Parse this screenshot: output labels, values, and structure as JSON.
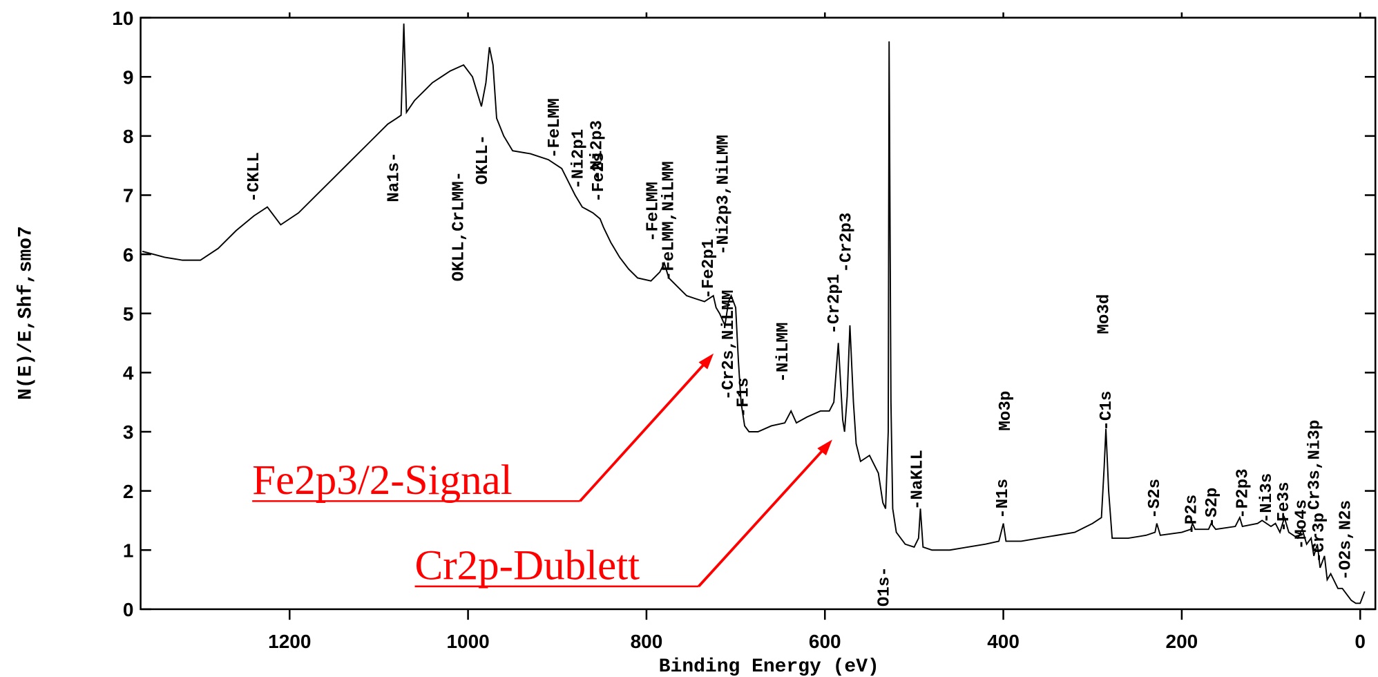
{
  "chart_data": {
    "type": "line",
    "xlabel": "Binding Energy (eV)",
    "ylabel": "N(E)/E,Shf,smo7",
    "color": "#000000",
    "xlim": [
      1367,
      -17
    ],
    "ylim": [
      0,
      10
    ],
    "xticks": [
      1200,
      1000,
      800,
      600,
      400,
      200,
      0
    ],
    "yticks": [
      0,
      1,
      2,
      3,
      4,
      5,
      6,
      7,
      8,
      9,
      10
    ],
    "x": [
      1365,
      1340,
      1320,
      1300,
      1280,
      1260,
      1240,
      1225,
      1210,
      1190,
      1170,
      1150,
      1130,
      1110,
      1090,
      1080,
      1075,
      1072,
      1069,
      1060,
      1040,
      1020,
      1005,
      995,
      985,
      980,
      976,
      972,
      968,
      960,
      950,
      930,
      910,
      895,
      880,
      872,
      866,
      860,
      852,
      848,
      840,
      830,
      820,
      810,
      795,
      785,
      780,
      775,
      765,
      755,
      745,
      735,
      725,
      722,
      718,
      712,
      708,
      705,
      700,
      697,
      694,
      690,
      685,
      675,
      660,
      645,
      638,
      632,
      620,
      605,
      595,
      590,
      585,
      580,
      578,
      575,
      572,
      568,
      565,
      560,
      550,
      540,
      535,
      532,
      529,
      528,
      526,
      524,
      520,
      510,
      500,
      495,
      493,
      490,
      480,
      460,
      440,
      420,
      405,
      400,
      397,
      380,
      360,
      340,
      320,
      300,
      290,
      287,
      285,
      282,
      278,
      260,
      240,
      230,
      228,
      224,
      200,
      190,
      188,
      185,
      170,
      167,
      162,
      140,
      135,
      132,
      115,
      110,
      100,
      95,
      90,
      85,
      80,
      70,
      65,
      60,
      55,
      52,
      48,
      45,
      40,
      37,
      33,
      25,
      20,
      10,
      5,
      0,
      -5
    ],
    "values": [
      6.05,
      5.95,
      5.9,
      5.9,
      6.1,
      6.4,
      6.65,
      6.8,
      6.5,
      6.7,
      7.0,
      7.3,
      7.6,
      7.9,
      8.2,
      8.3,
      8.35,
      9.9,
      8.4,
      8.6,
      8.9,
      9.1,
      9.2,
      9.0,
      8.5,
      8.9,
      9.5,
      9.2,
      8.3,
      8.0,
      7.75,
      7.7,
      7.6,
      7.45,
      7.0,
      6.8,
      6.75,
      6.7,
      6.6,
      6.45,
      6.2,
      5.95,
      5.75,
      5.6,
      5.55,
      5.7,
      5.85,
      5.6,
      5.45,
      5.3,
      5.25,
      5.2,
      5.3,
      5.1,
      5.0,
      4.8,
      5.2,
      5.3,
      5.1,
      4.2,
      3.5,
      3.1,
      3.0,
      3.0,
      3.1,
      3.15,
      3.35,
      3.15,
      3.25,
      3.35,
      3.35,
      3.5,
      4.5,
      3.2,
      3.0,
      3.6,
      4.8,
      3.5,
      2.8,
      2.5,
      2.6,
      2.3,
      1.8,
      1.7,
      3.0,
      9.6,
      3.5,
      1.7,
      1.3,
      1.1,
      1.05,
      1.2,
      1.7,
      1.05,
      1.0,
      1.0,
      1.05,
      1.1,
      1.15,
      1.45,
      1.15,
      1.15,
      1.2,
      1.25,
      1.3,
      1.45,
      1.55,
      2.4,
      3.05,
      2.0,
      1.2,
      1.2,
      1.25,
      1.3,
      1.45,
      1.25,
      1.3,
      1.35,
      1.45,
      1.35,
      1.35,
      1.45,
      1.35,
      1.4,
      1.55,
      1.4,
      1.45,
      1.5,
      1.4,
      1.45,
      1.3,
      1.55,
      1.3,
      1.2,
      1.35,
      1.1,
      1.2,
      0.9,
      1.1,
      0.7,
      0.9,
      0.5,
      0.6,
      0.35,
      0.35,
      0.15,
      0.1,
      0.1,
      0.3
    ],
    "annotations": [
      "-CKLL",
      "Na1s-",
      "OKLL,CrLMM-",
      "OKLL-",
      "-FeLMM",
      "-Ni2p1",
      "-Ni2p3",
      "-Fe2s",
      "-FeLMM",
      "-FeLMM,NiLMM",
      "-Fe2p1",
      "-Ni2p3,NiLMM",
      "-Cr2s,NiLMM",
      "-F1s",
      "-NiLMM",
      "-Cr2p1",
      "-Cr2p3",
      "O1s-",
      "-NaKLL",
      "Mo3p",
      "-N1s",
      "Mo3d",
      "-C1s",
      "-S2s",
      "-P2s",
      "-S2p",
      "-P2p3",
      "-Ni3s",
      "-Fe3s",
      "Cr3s,Ni3p",
      "-Mo4s",
      "-Cr3p",
      "-O2s,N2s"
    ],
    "callouts": [
      "Fe2p3/2-Signal",
      "Cr2p-Dublett"
    ]
  }
}
